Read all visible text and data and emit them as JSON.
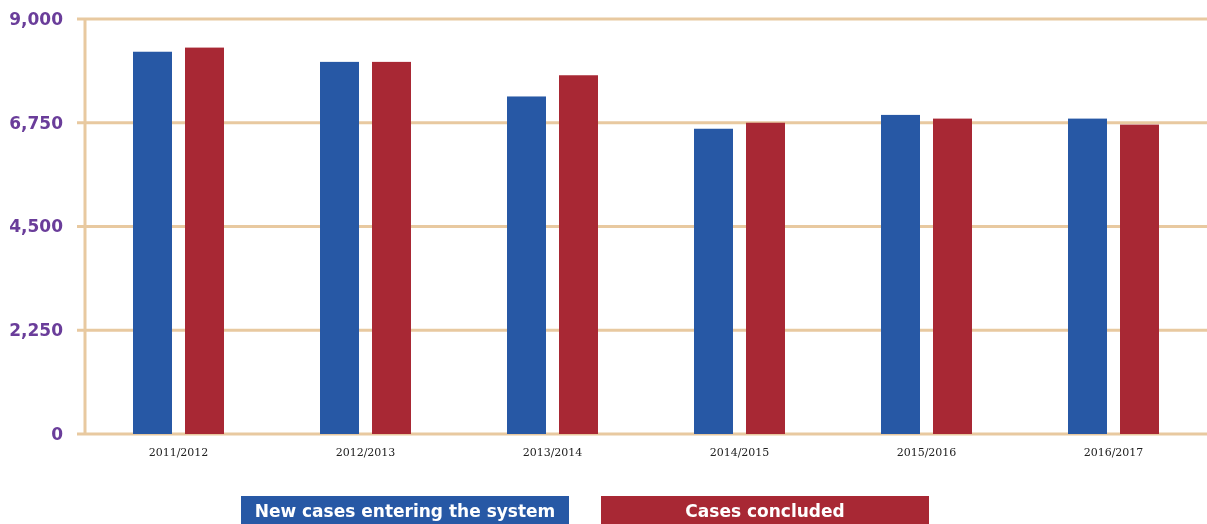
{
  "chart_data": {
    "type": "bar",
    "categories": [
      "2011/2012",
      "2012/2013",
      "2013/2014",
      "2014/2015",
      "2015/2016",
      "2016/2017"
    ],
    "series": [
      {
        "name": "New cases entering the system",
        "color": "#2758a5",
        "values": [
          8290,
          8070,
          7320,
          6620,
          6920,
          6840
        ]
      },
      {
        "name": "Cases concluded",
        "color": "#a82834",
        "values": [
          8380,
          8070,
          7780,
          6750,
          6840,
          6710
        ]
      }
    ],
    "ylim": [
      0,
      9000
    ],
    "yticks": [
      0,
      {
        "value": 2250,
        "label": "2,250"
      },
      {
        "value": 4500,
        "label": "4,500"
      },
      {
        "value": 6750,
        "label": "6,750"
      },
      {
        "value": 9000,
        "label": "9,000"
      }
    ],
    "grid": "y",
    "legend": "bottom"
  }
}
